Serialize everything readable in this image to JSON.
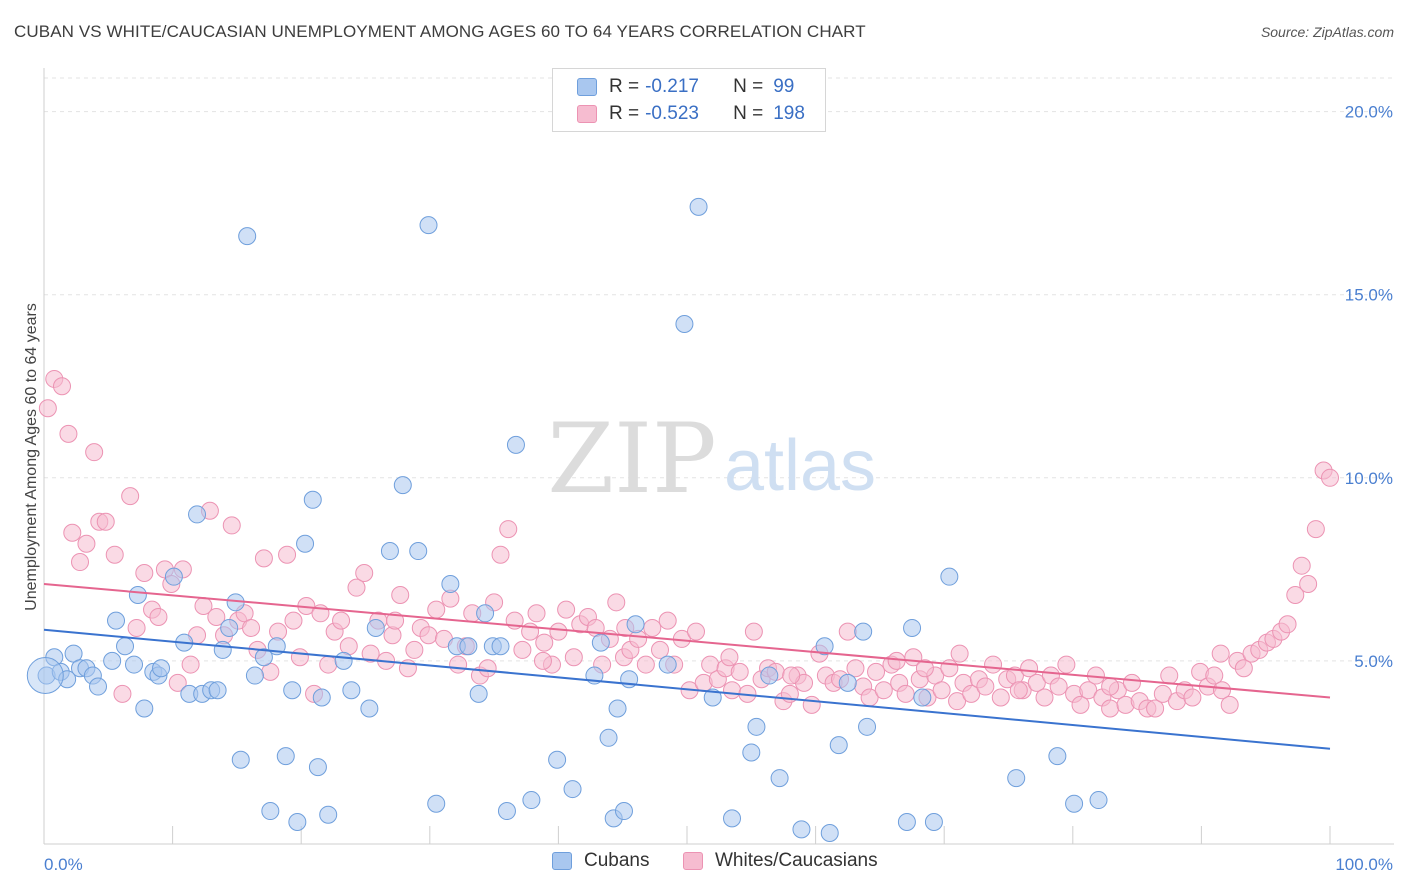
{
  "title": "CUBAN VS WHITE/CAUCASIAN UNEMPLOYMENT AMONG AGES 60 TO 64 YEARS CORRELATION CHART",
  "source": "Source: ZipAtlas.com",
  "watermark": {
    "zip": "ZIP",
    "atlas": "atlas"
  },
  "colors": {
    "cubans_fill": "#a9c7ef",
    "cubans_stroke": "#6f9fdc",
    "cubans_line": "#3a73cf",
    "whites_fill": "#f6bcd0",
    "whites_stroke": "#ec93b3",
    "whites_line": "#e5658f",
    "tick_label": "#4a7fd0",
    "grid": "#e3e3e3"
  },
  "legend": {
    "rows": [
      {
        "r_label": "R =",
        "r_value": "-0.217",
        "n_label": "N =",
        "n_value": "99"
      },
      {
        "r_label": "R =",
        "r_value": "-0.523",
        "n_label": "N =",
        "n_value": "198"
      }
    ]
  },
  "chart_data": {
    "type": "scatter",
    "title": "CUBAN VS WHITE/CAUCASIAN UNEMPLOYMENT AMONG AGES 60 TO 64 YEARS CORRELATION CHART",
    "xlabel": "",
    "ylabel": "Unemployment Among Ages 60 to 64 years",
    "xlim": [
      0,
      100
    ],
    "ylim": [
      0,
      21
    ],
    "x_tick_labels": [
      "0.0%",
      "100.0%"
    ],
    "y_ticks": [
      5,
      10,
      15,
      20
    ],
    "y_tick_labels": [
      "5.0%",
      "10.0%",
      "15.0%",
      "20.0%"
    ],
    "grid": true,
    "series": [
      {
        "name": "Cubans",
        "r": -0.217,
        "n": 99,
        "trend": {
          "x": [
            0,
            100
          ],
          "y": [
            5.85,
            2.6
          ]
        },
        "points": [
          [
            0.2,
            4.6
          ],
          [
            0.8,
            5.1
          ],
          [
            1.3,
            4.7
          ],
          [
            1.8,
            4.5
          ],
          [
            2.3,
            5.2
          ],
          [
            2.8,
            4.8
          ],
          [
            3.3,
            4.8
          ],
          [
            3.8,
            4.6
          ],
          [
            4.2,
            4.3
          ],
          [
            5.3,
            5.0
          ],
          [
            5.6,
            6.1
          ],
          [
            6.3,
            5.4
          ],
          [
            7.0,
            4.9
          ],
          [
            7.3,
            6.8
          ],
          [
            7.8,
            3.7
          ],
          [
            8.5,
            4.7
          ],
          [
            8.9,
            4.6
          ],
          [
            9.1,
            4.8
          ],
          [
            10.1,
            7.3
          ],
          [
            10.9,
            5.5
          ],
          [
            11.3,
            4.1
          ],
          [
            11.9,
            9.0
          ],
          [
            12.3,
            4.1
          ],
          [
            13.0,
            4.2
          ],
          [
            13.5,
            4.2
          ],
          [
            13.9,
            5.3
          ],
          [
            14.4,
            5.9
          ],
          [
            14.9,
            6.6
          ],
          [
            15.3,
            2.3
          ],
          [
            15.8,
            16.6
          ],
          [
            16.4,
            4.6
          ],
          [
            17.1,
            5.1
          ],
          [
            17.6,
            0.9
          ],
          [
            18.1,
            5.4
          ],
          [
            18.8,
            2.4
          ],
          [
            19.3,
            4.2
          ],
          [
            19.7,
            0.6
          ],
          [
            20.3,
            8.2
          ],
          [
            20.9,
            9.4
          ],
          [
            21.3,
            2.1
          ],
          [
            21.6,
            4.0
          ],
          [
            22.1,
            0.8
          ],
          [
            23.3,
            5.0
          ],
          [
            23.9,
            4.2
          ],
          [
            25.3,
            3.7
          ],
          [
            25.8,
            5.9
          ],
          [
            26.9,
            8.0
          ],
          [
            27.9,
            9.8
          ],
          [
            29.1,
            8.0
          ],
          [
            29.9,
            16.9
          ],
          [
            30.5,
            1.1
          ],
          [
            31.6,
            7.1
          ],
          [
            32.1,
            5.4
          ],
          [
            33.0,
            5.4
          ],
          [
            33.8,
            4.1
          ],
          [
            34.3,
            6.3
          ],
          [
            34.9,
            5.4
          ],
          [
            35.5,
            5.4
          ],
          [
            36.0,
            0.9
          ],
          [
            36.7,
            10.9
          ],
          [
            37.9,
            1.2
          ],
          [
            39.9,
            2.3
          ],
          [
            41.1,
            1.5
          ],
          [
            42.8,
            4.6
          ],
          [
            43.3,
            5.5
          ],
          [
            43.9,
            2.9
          ],
          [
            44.3,
            0.7
          ],
          [
            44.6,
            3.7
          ],
          [
            45.1,
            0.9
          ],
          [
            45.5,
            4.5
          ],
          [
            46.0,
            6.0
          ],
          [
            48.5,
            4.9
          ],
          [
            49.8,
            14.2
          ],
          [
            50.9,
            17.4
          ],
          [
            52.0,
            4.0
          ],
          [
            53.5,
            0.7
          ],
          [
            55.0,
            2.5
          ],
          [
            55.4,
            3.2
          ],
          [
            56.4,
            4.6
          ],
          [
            57.2,
            1.8
          ],
          [
            58.9,
            0.4
          ],
          [
            60.7,
            5.4
          ],
          [
            61.1,
            0.3
          ],
          [
            61.8,
            2.7
          ],
          [
            62.5,
            4.4
          ],
          [
            63.7,
            5.8
          ],
          [
            64.0,
            3.2
          ],
          [
            67.1,
            0.6
          ],
          [
            67.5,
            5.9
          ],
          [
            68.3,
            4.0
          ],
          [
            69.2,
            0.6
          ],
          [
            70.4,
            7.3
          ],
          [
            75.6,
            1.8
          ],
          [
            78.8,
            2.4
          ],
          [
            80.1,
            1.1
          ],
          [
            82.0,
            1.2
          ]
        ]
      },
      {
        "name": "Whites/Caucasians",
        "r": -0.523,
        "n": 198,
        "trend": {
          "x": [
            0,
            100
          ],
          "y": [
            7.1,
            4.0
          ]
        },
        "points": [
          [
            0.3,
            11.9
          ],
          [
            0.8,
            12.7
          ],
          [
            1.4,
            12.5
          ],
          [
            1.9,
            11.2
          ],
          [
            2.2,
            8.5
          ],
          [
            2.8,
            7.7
          ],
          [
            3.3,
            8.2
          ],
          [
            3.9,
            10.7
          ],
          [
            4.3,
            8.8
          ],
          [
            4.8,
            8.8
          ],
          [
            5.5,
            7.9
          ],
          [
            6.1,
            4.1
          ],
          [
            6.7,
            9.5
          ],
          [
            7.2,
            5.9
          ],
          [
            7.8,
            7.4
          ],
          [
            8.4,
            6.4
          ],
          [
            8.9,
            6.2
          ],
          [
            9.4,
            7.5
          ],
          [
            9.9,
            7.1
          ],
          [
            10.4,
            4.4
          ],
          [
            10.8,
            7.5
          ],
          [
            11.4,
            4.9
          ],
          [
            11.9,
            5.7
          ],
          [
            12.4,
            6.5
          ],
          [
            12.9,
            9.1
          ],
          [
            13.4,
            6.2
          ],
          [
            14.0,
            5.7
          ],
          [
            14.6,
            8.7
          ],
          [
            15.1,
            6.1
          ],
          [
            15.6,
            6.3
          ],
          [
            16.1,
            5.9
          ],
          [
            16.6,
            5.3
          ],
          [
            17.1,
            7.8
          ],
          [
            17.6,
            4.7
          ],
          [
            18.2,
            5.8
          ],
          [
            18.9,
            7.9
          ],
          [
            19.4,
            6.1
          ],
          [
            19.9,
            5.1
          ],
          [
            20.4,
            6.5
          ],
          [
            21.0,
            4.1
          ],
          [
            21.5,
            6.3
          ],
          [
            22.1,
            4.9
          ],
          [
            22.6,
            5.8
          ],
          [
            23.1,
            6.1
          ],
          [
            23.7,
            5.4
          ],
          [
            24.3,
            7.0
          ],
          [
            24.9,
            7.4
          ],
          [
            25.4,
            5.2
          ],
          [
            26.0,
            6.1
          ],
          [
            26.6,
            5.0
          ],
          [
            27.1,
            5.7
          ],
          [
            27.7,
            6.8
          ],
          [
            28.3,
            4.8
          ],
          [
            28.8,
            5.3
          ],
          [
            29.3,
            5.9
          ],
          [
            29.9,
            5.7
          ],
          [
            30.5,
            6.4
          ],
          [
            31.1,
            5.6
          ],
          [
            31.6,
            6.7
          ],
          [
            32.2,
            4.9
          ],
          [
            32.8,
            5.4
          ],
          [
            33.3,
            6.3
          ],
          [
            33.9,
            4.6
          ],
          [
            34.5,
            4.8
          ],
          [
            35.0,
            6.6
          ],
          [
            35.5,
            7.9
          ],
          [
            36.1,
            8.6
          ],
          [
            36.6,
            6.1
          ],
          [
            37.2,
            5.3
          ],
          [
            37.8,
            5.8
          ],
          [
            38.3,
            6.3
          ],
          [
            38.9,
            5.5
          ],
          [
            39.5,
            4.9
          ],
          [
            40.0,
            5.8
          ],
          [
            40.6,
            6.4
          ],
          [
            41.2,
            5.1
          ],
          [
            41.7,
            6.0
          ],
          [
            42.3,
            6.2
          ],
          [
            42.9,
            5.9
          ],
          [
            43.4,
            4.9
          ],
          [
            44.0,
            5.6
          ],
          [
            44.5,
            6.6
          ],
          [
            45.1,
            5.1
          ],
          [
            45.6,
            5.3
          ],
          [
            46.2,
            5.6
          ],
          [
            46.8,
            4.9
          ],
          [
            47.3,
            5.9
          ],
          [
            47.9,
            5.3
          ],
          [
            48.5,
            6.1
          ],
          [
            49.0,
            4.9
          ],
          [
            49.6,
            5.6
          ],
          [
            50.2,
            4.2
          ],
          [
            50.7,
            5.8
          ],
          [
            51.3,
            4.4
          ],
          [
            51.8,
            4.9
          ],
          [
            52.4,
            4.5
          ],
          [
            53.0,
            4.8
          ],
          [
            53.5,
            4.2
          ],
          [
            54.1,
            4.7
          ],
          [
            54.7,
            4.1
          ],
          [
            55.2,
            5.8
          ],
          [
            55.8,
            4.5
          ],
          [
            56.3,
            4.8
          ],
          [
            56.9,
            4.7
          ],
          [
            57.5,
            3.9
          ],
          [
            58.0,
            4.1
          ],
          [
            58.6,
            4.6
          ],
          [
            59.1,
            4.4
          ],
          [
            59.7,
            3.8
          ],
          [
            60.3,
            5.2
          ],
          [
            60.8,
            4.6
          ],
          [
            61.4,
            4.4
          ],
          [
            61.9,
            4.5
          ],
          [
            62.5,
            5.8
          ],
          [
            63.1,
            4.8
          ],
          [
            63.7,
            4.3
          ],
          [
            64.2,
            4.0
          ],
          [
            64.7,
            4.7
          ],
          [
            65.3,
            4.2
          ],
          [
            65.9,
            4.9
          ],
          [
            66.5,
            4.4
          ],
          [
            67.0,
            4.1
          ],
          [
            67.6,
            5.1
          ],
          [
            68.1,
            4.5
          ],
          [
            68.7,
            4.0
          ],
          [
            69.3,
            4.6
          ],
          [
            69.8,
            4.2
          ],
          [
            70.4,
            4.8
          ],
          [
            71.0,
            3.9
          ],
          [
            71.5,
            4.4
          ],
          [
            72.1,
            4.1
          ],
          [
            72.7,
            4.5
          ],
          [
            73.2,
            4.3
          ],
          [
            73.8,
            4.9
          ],
          [
            74.4,
            4.0
          ],
          [
            74.9,
            4.5
          ],
          [
            75.5,
            4.6
          ],
          [
            76.1,
            4.2
          ],
          [
            76.6,
            4.8
          ],
          [
            77.2,
            4.4
          ],
          [
            77.8,
            4.0
          ],
          [
            78.3,
            4.6
          ],
          [
            78.9,
            4.3
          ],
          [
            79.5,
            4.9
          ],
          [
            80.1,
            4.1
          ],
          [
            80.6,
            3.8
          ],
          [
            81.2,
            4.2
          ],
          [
            81.8,
            4.6
          ],
          [
            82.3,
            4.0
          ],
          [
            82.9,
            3.7
          ],
          [
            83.5,
            4.2
          ],
          [
            84.1,
            3.8
          ],
          [
            84.6,
            4.4
          ],
          [
            85.2,
            3.9
          ],
          [
            85.8,
            3.7
          ],
          [
            86.4,
            3.7
          ],
          [
            87.0,
            4.1
          ],
          [
            87.5,
            4.6
          ],
          [
            88.1,
            3.9
          ],
          [
            88.7,
            4.2
          ],
          [
            89.3,
            4.0
          ],
          [
            89.9,
            4.7
          ],
          [
            90.5,
            4.3
          ],
          [
            91.0,
            4.6
          ],
          [
            91.6,
            4.2
          ],
          [
            92.2,
            3.8
          ],
          [
            92.8,
            5.0
          ],
          [
            93.3,
            4.8
          ],
          [
            93.9,
            5.2
          ],
          [
            94.5,
            5.3
          ],
          [
            95.1,
            5.5
          ],
          [
            95.6,
            5.6
          ],
          [
            96.2,
            5.8
          ],
          [
            96.7,
            6.0
          ],
          [
            97.3,
            6.8
          ],
          [
            97.8,
            7.6
          ],
          [
            98.3,
            7.1
          ],
          [
            98.9,
            8.6
          ],
          [
            99.5,
            10.2
          ],
          [
            100.0,
            10.0
          ],
          [
            38.8,
            5.0
          ],
          [
            27.3,
            6.1
          ],
          [
            66.3,
            5.0
          ],
          [
            75.8,
            4.2
          ],
          [
            53.3,
            5.1
          ],
          [
            82.9,
            4.3
          ],
          [
            91.5,
            5.2
          ],
          [
            45.2,
            5.9
          ],
          [
            71.2,
            5.2
          ],
          [
            68.5,
            4.8
          ],
          [
            58.1,
            4.6
          ]
        ]
      }
    ]
  },
  "bottom_legend": [
    {
      "label": "Cubans"
    },
    {
      "label": "Whites/Caucasians"
    }
  ]
}
